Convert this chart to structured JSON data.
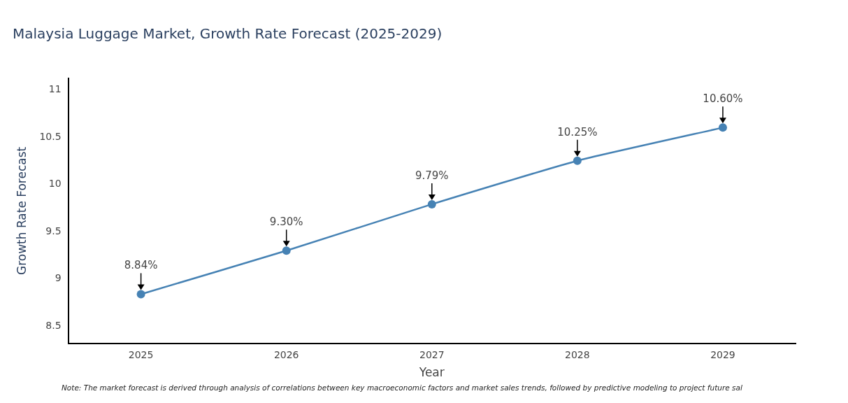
{
  "chart_data": {
    "type": "line",
    "title": "Malaysia Luggage Market, Growth Rate Forecast (2025-2029)",
    "xlabel": "Year",
    "ylabel": "Growth Rate Forecast",
    "categories": [
      "2025",
      "2026",
      "2027",
      "2028",
      "2029"
    ],
    "series": [
      {
        "color": "#4682b4",
        "values": [
          8.84,
          9.3,
          9.79,
          10.25,
          10.6
        ],
        "value_labels": [
          "8.84%",
          "9.30%",
          "9.79%",
          "10.25%",
          "10.60%"
        ]
      }
    ],
    "ylim": [
      8.32,
      11.12
    ],
    "yticks": [
      8.5,
      9,
      9.5,
      10,
      10.5,
      11
    ],
    "grid": false,
    "legend": false,
    "marker": "circle",
    "line_style": "solid",
    "annotations": [
      "Note: The market forecast is derived through analysis of correlations between key macroeconomic factors and market sales trends, followed by predictive modeling to project future sal"
    ]
  }
}
